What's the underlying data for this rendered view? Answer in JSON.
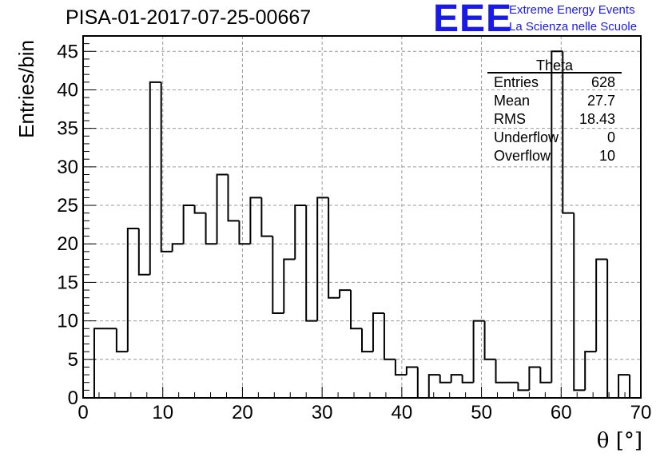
{
  "header": {
    "run_title": "PISA-01-2017-07-25-00667",
    "logo_text": "EEE",
    "logo_line1": "Extreme Energy Events",
    "logo_line2": "La Scienza nelle Scuole"
  },
  "stats": {
    "title": "Theta",
    "rows": [
      {
        "label": "Entries",
        "value": "628"
      },
      {
        "label": "Mean",
        "value": "27.7"
      },
      {
        "label": "RMS",
        "value": "18.43"
      },
      {
        "label": "Underflow",
        "value": "0"
      },
      {
        "label": "Overflow",
        "value": "10"
      }
    ]
  },
  "colors": {
    "logo": "#1a1ae6",
    "line": "#000000",
    "grid": "#9a9a9a"
  },
  "chart_data": {
    "type": "bar",
    "title": "PISA-01-2017-07-25-00667",
    "xlabel": "θ [°]",
    "ylabel": "Entries/bin",
    "xlim": [
      0,
      70
    ],
    "ylim": [
      0,
      47
    ],
    "grid": true,
    "bin_edges_start": 1.4,
    "bin_width": 1.4,
    "values": [
      9,
      9,
      6,
      22,
      16,
      41,
      19,
      20,
      25,
      24,
      20,
      29,
      23,
      20,
      26,
      21,
      11,
      18,
      25,
      10,
      26,
      13,
      14,
      9,
      6,
      11,
      5,
      3,
      4,
      0,
      3,
      2,
      3,
      2,
      10,
      5,
      2,
      2,
      1,
      4,
      2,
      45,
      24,
      1,
      6,
      18,
      0,
      3
    ],
    "x_ticks": [
      "0",
      "10",
      "20",
      "30",
      "40",
      "50",
      "60",
      "70"
    ],
    "y_ticks": [
      "0",
      "5",
      "10",
      "15",
      "20",
      "25",
      "30",
      "35",
      "40",
      "45"
    ]
  }
}
